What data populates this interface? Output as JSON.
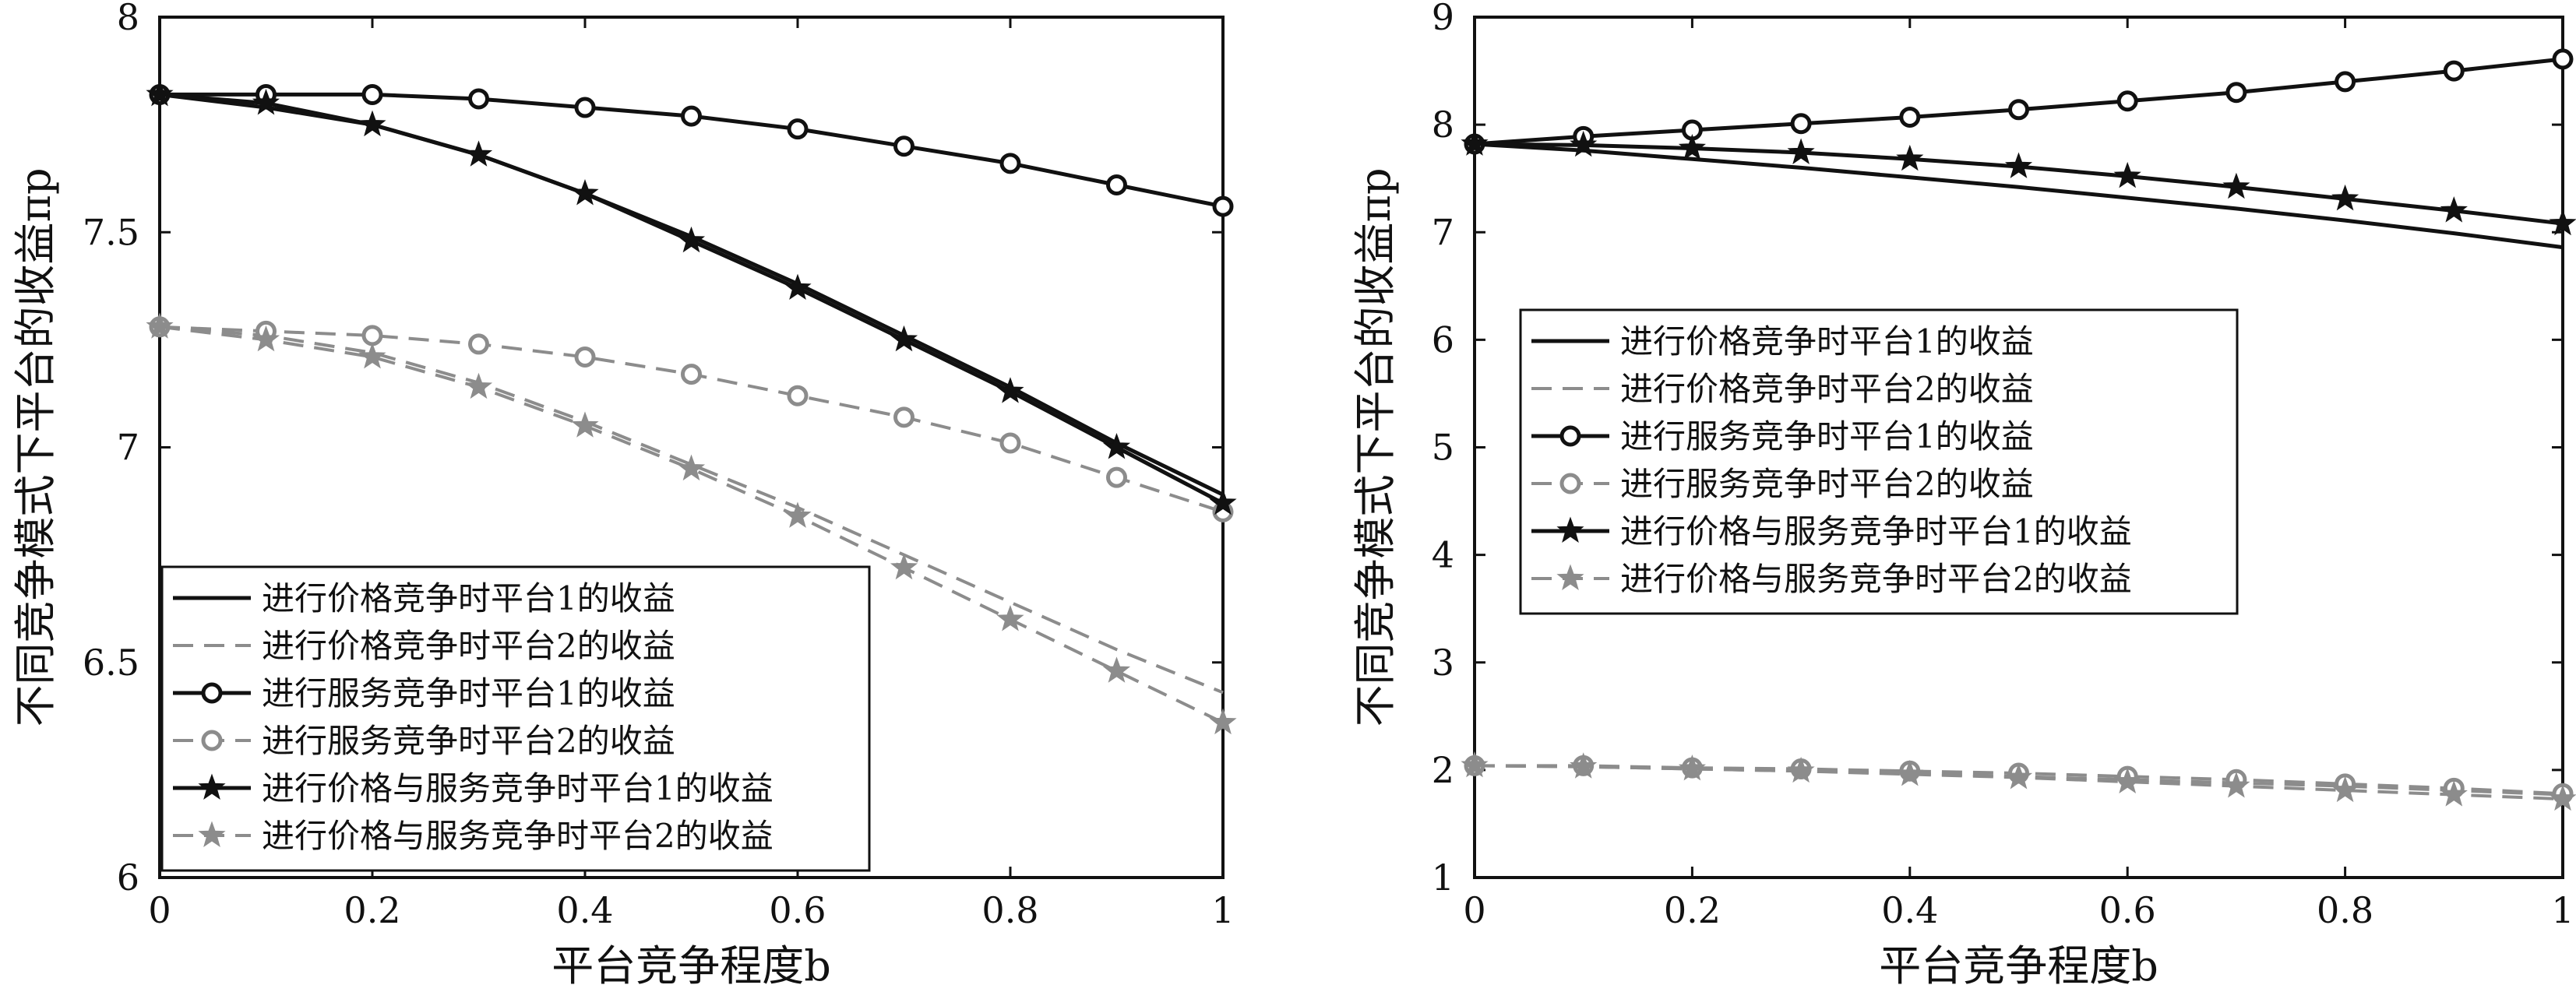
{
  "chart_data": [
    {
      "type": "line",
      "xlabel": "平台竞争程度b",
      "ylabel": "不同竞争模式下平台的收益πp",
      "xlim": [
        0,
        1
      ],
      "ylim": [
        6,
        8
      ],
      "x_ticks": [
        0,
        0.2,
        0.4,
        0.6,
        0.8,
        1
      ],
      "y_ticks": [
        6,
        6.5,
        7,
        7.5,
        8
      ],
      "x_tick_labels": [
        "0",
        "0.2",
        "0.4",
        "0.6",
        "0.8",
        "1"
      ],
      "y_tick_labels": [
        "6",
        "6.5",
        "7",
        "7.5",
        "8"
      ],
      "grid": false,
      "legend_position": "bottom-left",
      "x": [
        0,
        0.1,
        0.2,
        0.3,
        0.4,
        0.5,
        0.6,
        0.7,
        0.8,
        0.9,
        1.0
      ],
      "series": [
        {
          "name": "进行价格竞争时平台1的收益",
          "color": "#111111",
          "dash": "solid",
          "marker": "none",
          "values": [
            7.82,
            7.79,
            7.75,
            7.68,
            7.59,
            7.49,
            7.38,
            7.26,
            7.14,
            7.01,
            6.89
          ]
        },
        {
          "name": "进行价格竞争时平台2的收益",
          "color": "#8c8c8c",
          "dash": "dashed",
          "marker": "none",
          "values": [
            7.28,
            7.26,
            7.22,
            7.15,
            7.06,
            6.96,
            6.86,
            6.75,
            6.64,
            6.53,
            6.43
          ]
        },
        {
          "name": "进行服务竞争时平台1的收益",
          "color": "#111111",
          "dash": "solid",
          "marker": "circle",
          "values": [
            7.82,
            7.82,
            7.82,
            7.81,
            7.79,
            7.77,
            7.74,
            7.7,
            7.66,
            7.61,
            7.56
          ]
        },
        {
          "name": "进行服务竞争时平台2的收益",
          "color": "#8c8c8c",
          "dash": "dashed",
          "marker": "circle",
          "values": [
            7.28,
            7.27,
            7.26,
            7.24,
            7.21,
            7.17,
            7.12,
            7.07,
            7.01,
            6.93,
            6.85
          ]
        },
        {
          "name": "进行价格与服务竞争时平台1的收益",
          "color": "#111111",
          "dash": "solid",
          "marker": "star",
          "values": [
            7.82,
            7.8,
            7.75,
            7.68,
            7.59,
            7.48,
            7.37,
            7.25,
            7.13,
            7.0,
            6.87
          ]
        },
        {
          "name": "进行价格与服务竞争时平台2的收益",
          "color": "#8c8c8c",
          "dash": "dashed",
          "marker": "star",
          "values": [
            7.28,
            7.25,
            7.21,
            7.14,
            7.05,
            6.95,
            6.84,
            6.72,
            6.6,
            6.48,
            6.36
          ]
        }
      ]
    },
    {
      "type": "line",
      "xlabel": "平台竞争程度b",
      "ylabel": "不同竞争模式下平台的收益πp",
      "xlim": [
        0,
        1
      ],
      "ylim": [
        1,
        9
      ],
      "x_ticks": [
        0,
        0.2,
        0.4,
        0.6,
        0.8,
        1
      ],
      "y_ticks": [
        1,
        2,
        3,
        4,
        5,
        6,
        7,
        8,
        9
      ],
      "x_tick_labels": [
        "0",
        "0.2",
        "0.4",
        "0.6",
        "0.8",
        "1"
      ],
      "y_tick_labels": [
        "1",
        "2",
        "3",
        "4",
        "5",
        "6",
        "7",
        "8",
        "9"
      ],
      "grid": false,
      "legend_position": "middle-left",
      "x": [
        0,
        0.1,
        0.2,
        0.3,
        0.4,
        0.5,
        0.6,
        0.7,
        0.8,
        0.9,
        1.0
      ],
      "series": [
        {
          "name": "进行价格竞争时平台1的收益",
          "color": "#111111",
          "dash": "solid",
          "marker": "none",
          "values": [
            7.82,
            7.76,
            7.68,
            7.6,
            7.51,
            7.42,
            7.32,
            7.22,
            7.11,
            6.99,
            6.86
          ]
        },
        {
          "name": "进行价格竞争时平台2的收益",
          "color": "#8c8c8c",
          "dash": "dashed",
          "marker": "none",
          "values": [
            2.04,
            2.03,
            2.01,
            1.99,
            1.97,
            1.94,
            1.91,
            1.88,
            1.85,
            1.81,
            1.77
          ]
        },
        {
          "name": "进行服务竞争时平台1的收益",
          "color": "#111111",
          "dash": "solid",
          "marker": "circle",
          "values": [
            7.82,
            7.89,
            7.95,
            8.01,
            8.07,
            8.14,
            8.22,
            8.3,
            8.4,
            8.5,
            8.61
          ]
        },
        {
          "name": "进行服务竞争时平台2的收益",
          "color": "#8c8c8c",
          "dash": "dashed",
          "marker": "circle",
          "values": [
            2.04,
            2.04,
            2.02,
            2.01,
            1.99,
            1.97,
            1.94,
            1.91,
            1.87,
            1.83,
            1.78
          ]
        },
        {
          "name": "进行价格与服务竞争时平台1的收益",
          "color": "#111111",
          "dash": "solid",
          "marker": "star",
          "values": [
            7.82,
            7.81,
            7.78,
            7.74,
            7.68,
            7.61,
            7.52,
            7.42,
            7.31,
            7.2,
            7.08
          ]
        },
        {
          "name": "进行价格与服务竞争时平台2的收益",
          "color": "#8c8c8c",
          "dash": "dashed",
          "marker": "star",
          "values": [
            2.04,
            2.03,
            2.01,
            1.99,
            1.96,
            1.93,
            1.89,
            1.85,
            1.81,
            1.77,
            1.73
          ]
        }
      ]
    }
  ]
}
